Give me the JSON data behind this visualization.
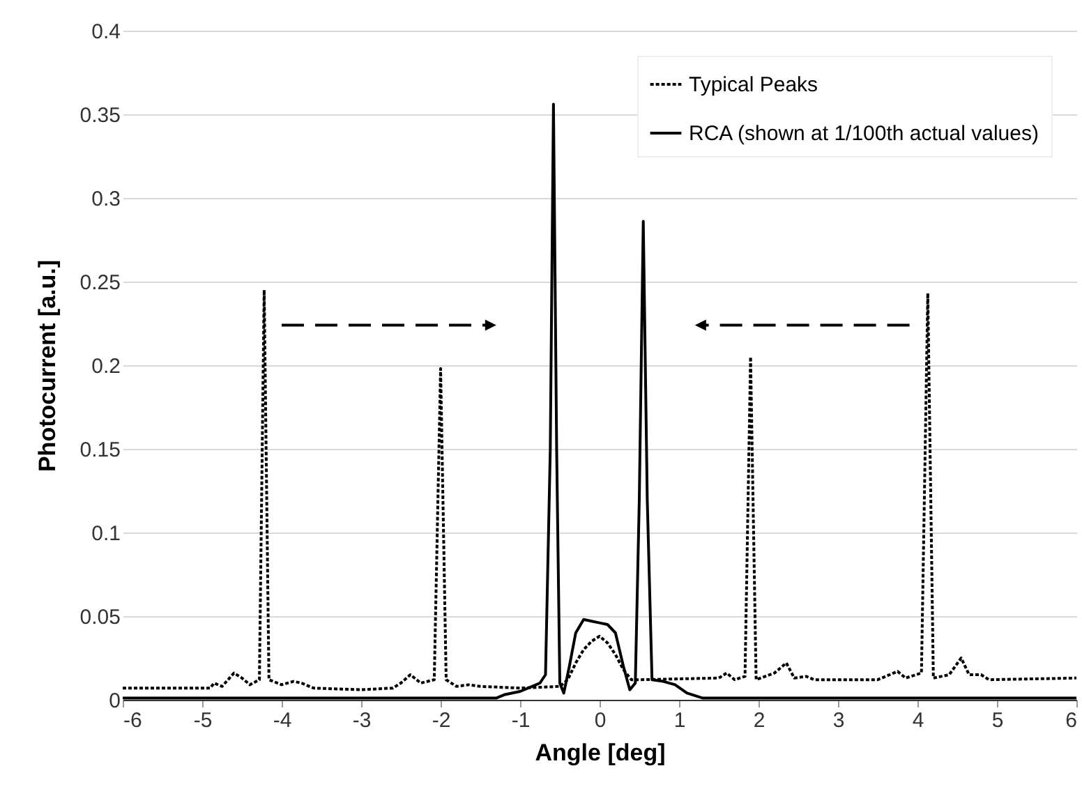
{
  "chart_data": {
    "type": "line",
    "xlabel": "Angle [deg]",
    "ylabel": "Photocurrent [a.u.]",
    "xlim": [
      -6,
      6
    ],
    "xticks": [
      -6,
      -5,
      -4,
      -3,
      -2,
      -1,
      0,
      1,
      2,
      3,
      4,
      5,
      6
    ],
    "ylim": [
      0,
      0.4
    ],
    "yticks": [
      0,
      0.05,
      0.1,
      0.15,
      0.2,
      0.25,
      0.3,
      0.35,
      0.4
    ],
    "grid": "y",
    "legend": "top right",
    "marker": "none",
    "series": [
      {
        "name": "Typical Peaks",
        "color": "#000000",
        "line_style": "dotted",
        "x": [
          -6,
          -4.9,
          -4.85,
          -4.75,
          -4.6,
          -4.5,
          -4.4,
          -4.28,
          -4.22,
          -4.16,
          -4.0,
          -3.85,
          -3.75,
          -3.6,
          -3.0,
          -2.6,
          -2.5,
          -2.38,
          -2.25,
          -2.08,
          -2.0,
          -1.93,
          -1.8,
          -1.65,
          -1.5,
          -1.0,
          -0.5,
          -0.4,
          -0.3,
          -0.2,
          -0.1,
          0,
          0.1,
          0.2,
          0.3,
          0.4,
          0.5,
          1.5,
          1.6,
          1.7,
          1.83,
          1.9,
          1.97,
          2.2,
          2.35,
          2.45,
          2.6,
          2.7,
          3.5,
          3.75,
          3.85,
          4.05,
          4.13,
          4.2,
          4.4,
          4.55,
          4.65,
          4.8,
          4.9,
          6
        ],
        "values": [
          0.007,
          0.007,
          0.01,
          0.008,
          0.016,
          0.013,
          0.009,
          0.012,
          0.245,
          0.012,
          0.009,
          0.011,
          0.01,
          0.007,
          0.006,
          0.007,
          0.01,
          0.015,
          0.01,
          0.012,
          0.198,
          0.012,
          0.008,
          0.009,
          0.008,
          0.007,
          0.008,
          0.012,
          0.022,
          0.03,
          0.035,
          0.038,
          0.034,
          0.027,
          0.018,
          0.012,
          0.012,
          0.013,
          0.016,
          0.012,
          0.014,
          0.205,
          0.012,
          0.016,
          0.022,
          0.013,
          0.014,
          0.012,
          0.012,
          0.017,
          0.013,
          0.016,
          0.243,
          0.013,
          0.015,
          0.025,
          0.015,
          0.015,
          0.012,
          0.013
        ]
      },
      {
        "name": "RCA (shown at 1/100th actual values)",
        "color": "#000000",
        "line_style": "solid",
        "x": [
          -6,
          -2,
          -1.3,
          -1.2,
          -1.0,
          -0.85,
          -0.75,
          -0.68,
          -0.62,
          -0.58,
          -0.54,
          -0.5,
          -0.45,
          -0.38,
          -0.3,
          -0.2,
          -0.1,
          0,
          0.1,
          0.2,
          0.3,
          0.38,
          0.45,
          0.5,
          0.55,
          0.6,
          0.66,
          0.8,
          0.95,
          1.1,
          1.3,
          6
        ],
        "values": [
          0.001,
          0.001,
          0.001,
          0.003,
          0.005,
          0.008,
          0.01,
          0.015,
          0.15,
          0.356,
          0.15,
          0.01,
          0.004,
          0.02,
          0.04,
          0.048,
          0.047,
          0.046,
          0.045,
          0.04,
          0.02,
          0.006,
          0.01,
          0.12,
          0.286,
          0.12,
          0.012,
          0.011,
          0.009,
          0.004,
          0.001,
          0.001
        ]
      }
    ]
  }
}
